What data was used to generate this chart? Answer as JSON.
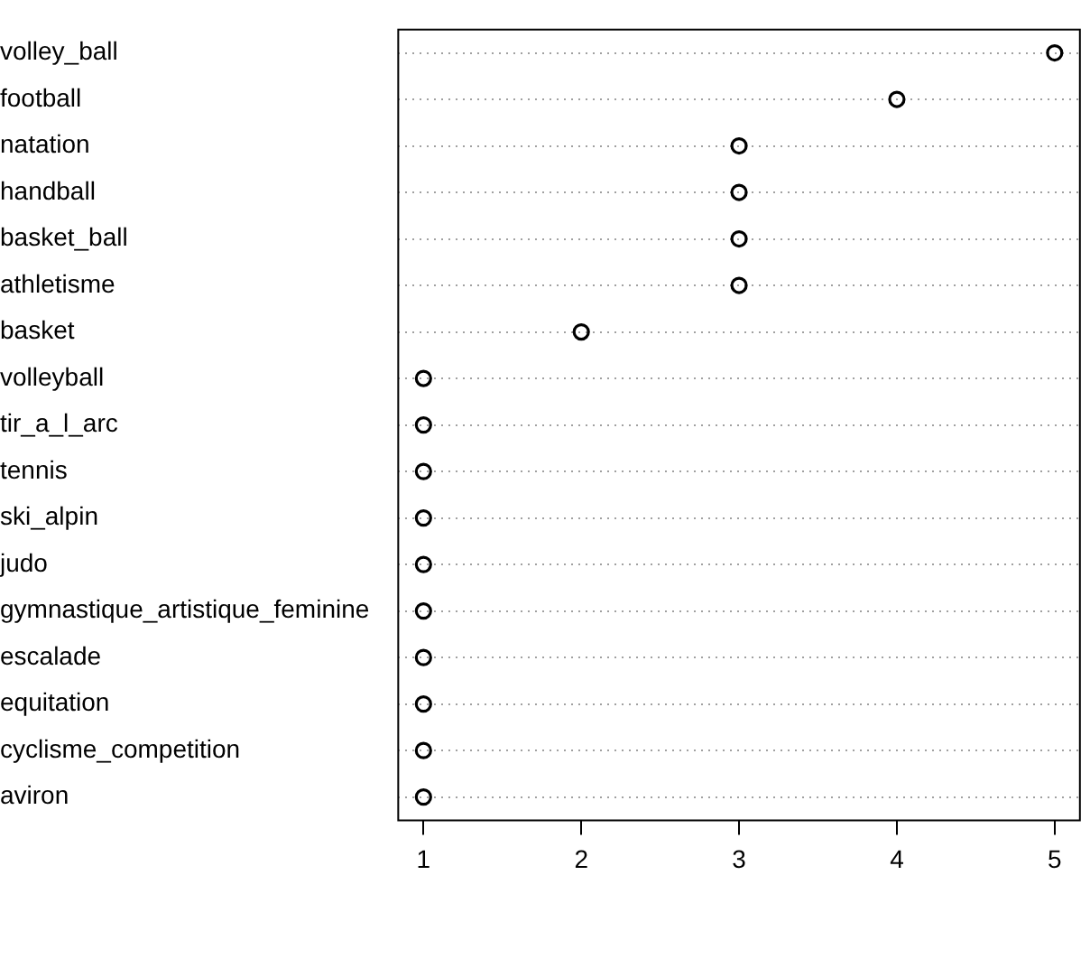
{
  "chart_data": {
    "type": "scatter",
    "orientation": "horizontal",
    "categories": [
      "volley_ball",
      "football",
      "natation",
      "handball",
      "basket_ball",
      "athletisme",
      "basket",
      "volleyball",
      "tir_a_l_arc",
      "tennis",
      "ski_alpin",
      "judo",
      "gymnastique_artistique_feminine",
      "escalade",
      "equitation",
      "cyclisme_competition",
      "aviron"
    ],
    "values": [
      5,
      4,
      3,
      3,
      3,
      3,
      2,
      1,
      1,
      1,
      1,
      1,
      1,
      1,
      1,
      1,
      1
    ],
    "color": "#000000",
    "xlim": [
      0.84,
      5.16
    ],
    "xticks": [
      1,
      2,
      3,
      4,
      5
    ],
    "grid": "y",
    "marker": "circle"
  }
}
